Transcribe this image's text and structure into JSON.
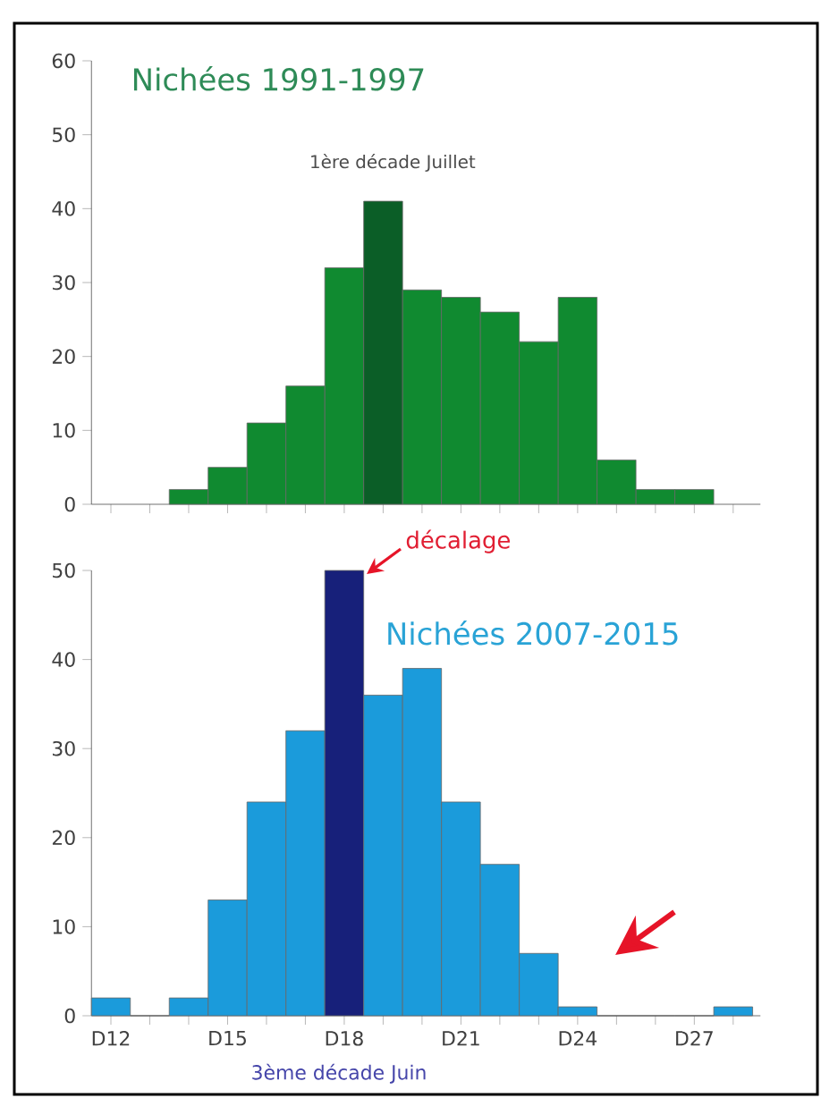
{
  "chart_data": [
    {
      "type": "bar",
      "title": "Nichées 1991-1997",
      "annotations": [
        "1ère décade Juillet"
      ],
      "categories": [
        null,
        null,
        null,
        null,
        null,
        null,
        null,
        null,
        null,
        null,
        null,
        null,
        null,
        null,
        null,
        null,
        null
      ],
      "values": [
        null,
        null,
        2,
        5,
        11,
        16,
        32,
        41,
        29,
        28,
        26,
        22,
        28,
        6,
        2,
        2,
        null
      ],
      "colors": [
        "#108a30",
        "#108a30",
        "#108a30",
        "#108a30",
        "#108a30",
        "#108a30",
        "#108a30",
        "#0b5e27",
        "#108a30",
        "#108a30",
        "#108a30",
        "#108a30",
        "#108a30",
        "#108a30",
        "#108a30",
        "#108a30",
        "#108a30"
      ],
      "ylim": [
        0,
        60
      ],
      "yticks": [
        0,
        10,
        20,
        30,
        40,
        50,
        60
      ],
      "tick_labels": "y"
    },
    {
      "type": "bar",
      "title": "Nichées 2007-2015",
      "annotations": [
        "décalage",
        "3ème décade Juin"
      ],
      "categories": [
        "D12",
        null,
        null,
        "D15",
        null,
        null,
        "D18",
        null,
        null,
        "D21",
        null,
        null,
        "D24",
        null,
        null,
        "D27",
        null
      ],
      "values": [
        2,
        0,
        2,
        13,
        24,
        32,
        50,
        36,
        39,
        24,
        17,
        7,
        1,
        0,
        0,
        0,
        1
      ],
      "colors": [
        "#1b9bdb",
        "#1b9bdb",
        "#1b9bdb",
        "#1b9bdb",
        "#1b9bdb",
        "#1b9bdb",
        "#17207a",
        "#1b9bdb",
        "#1b9bdb",
        "#1b9bdb",
        "#1b9bdb",
        "#1b9bdb",
        "#1b9bdb",
        "#1b9bdb",
        "#1b9bdb",
        "#1b9bdb",
        "#1b9bdb"
      ],
      "ylim": [
        0,
        50
      ],
      "yticks": [
        0,
        10,
        20,
        30,
        40,
        50
      ]
    }
  ]
}
